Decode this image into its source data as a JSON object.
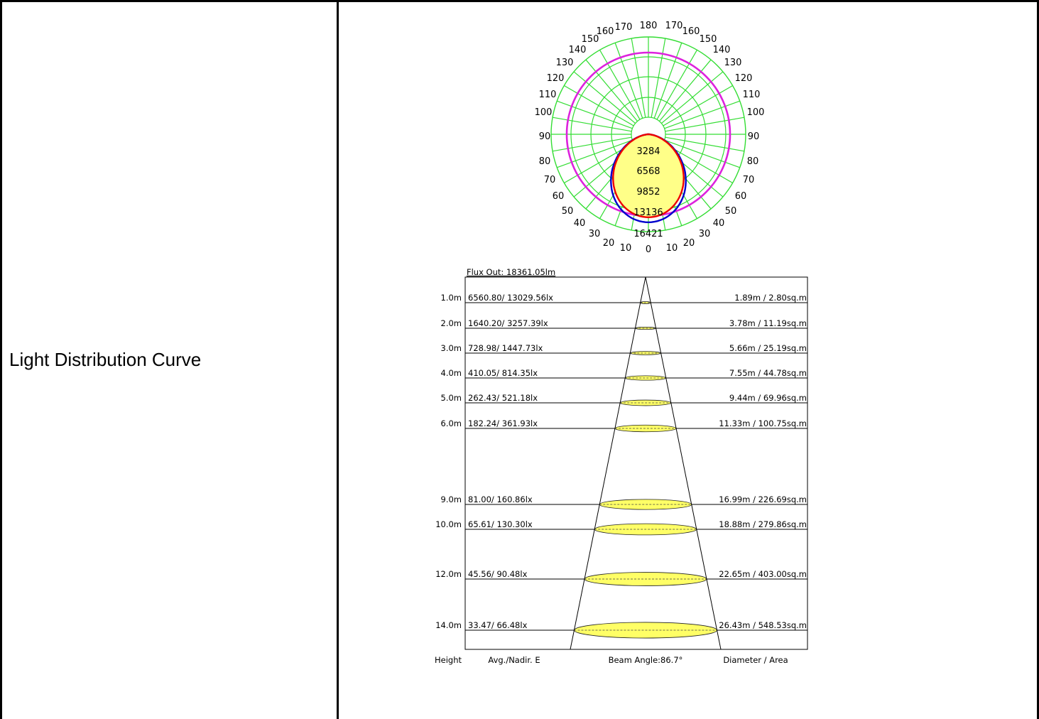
{
  "row_label": "Light Distribution Curve",
  "colors": {
    "grid": "#33dd33",
    "outer_ring": "#dd22dd",
    "curve_c0": "#0000cc",
    "curve_c90": "#ee0000",
    "fill": "#ffff88",
    "spot": "#ffff66"
  },
  "polar": {
    "left_labels": [
      "160",
      "150",
      "140",
      "130",
      "120",
      "110",
      "100",
      "90",
      "80",
      "70",
      "60",
      "50",
      "40",
      "30",
      "20",
      "10"
    ],
    "right_labels": [
      "170",
      "160",
      "150",
      "140",
      "130",
      "120",
      "110",
      "100",
      "90",
      "80",
      "70",
      "60",
      "50",
      "40",
      "30",
      "20",
      "10"
    ],
    "top_label": "180",
    "top_left_label": "170",
    "bottom_label": "0",
    "intensity_labels": [
      "3284",
      "6568",
      "9852",
      "13136",
      "16421"
    ]
  },
  "chart_data": {
    "type": "table",
    "title": "Flux Out: 18361.05lm",
    "beam_angle": "Beam Angle:86.7°",
    "footer": {
      "height": "Height",
      "avg": "Avg./Nadir. E",
      "diameter": "Diameter / Area"
    },
    "rows": [
      {
        "height": "1.0m",
        "illum": "6560.80/ 13029.56lx",
        "area": "1.89m / 2.80sq.m"
      },
      {
        "height": "2.0m",
        "illum": "1640.20/ 3257.39lx",
        "area": "3.78m / 11.19sq.m"
      },
      {
        "height": "3.0m",
        "illum": "728.98/ 1447.73lx",
        "area": "5.66m / 25.19sq.m"
      },
      {
        "height": "4.0m",
        "illum": "410.05/ 814.35lx",
        "area": "7.55m / 44.78sq.m"
      },
      {
        "height": "5.0m",
        "illum": "262.43/ 521.18lx",
        "area": "9.44m / 69.96sq.m"
      },
      {
        "height": "6.0m",
        "illum": "182.24/ 361.93lx",
        "area": "11.33m / 100.75sq.m"
      },
      {
        "height": "9.0m",
        "illum": "81.00/ 160.86lx",
        "area": "16.99m / 226.69sq.m"
      },
      {
        "height": "10.0m",
        "illum": "65.61/ 130.30lx",
        "area": "18.88m / 279.86sq.m"
      },
      {
        "height": "12.0m",
        "illum": "45.56/ 90.48lx",
        "area": "22.65m / 403.00sq.m"
      },
      {
        "height": "14.0m",
        "illum": "33.47/ 66.48lx",
        "area": "26.43m / 548.53sq.m"
      }
    ]
  }
}
